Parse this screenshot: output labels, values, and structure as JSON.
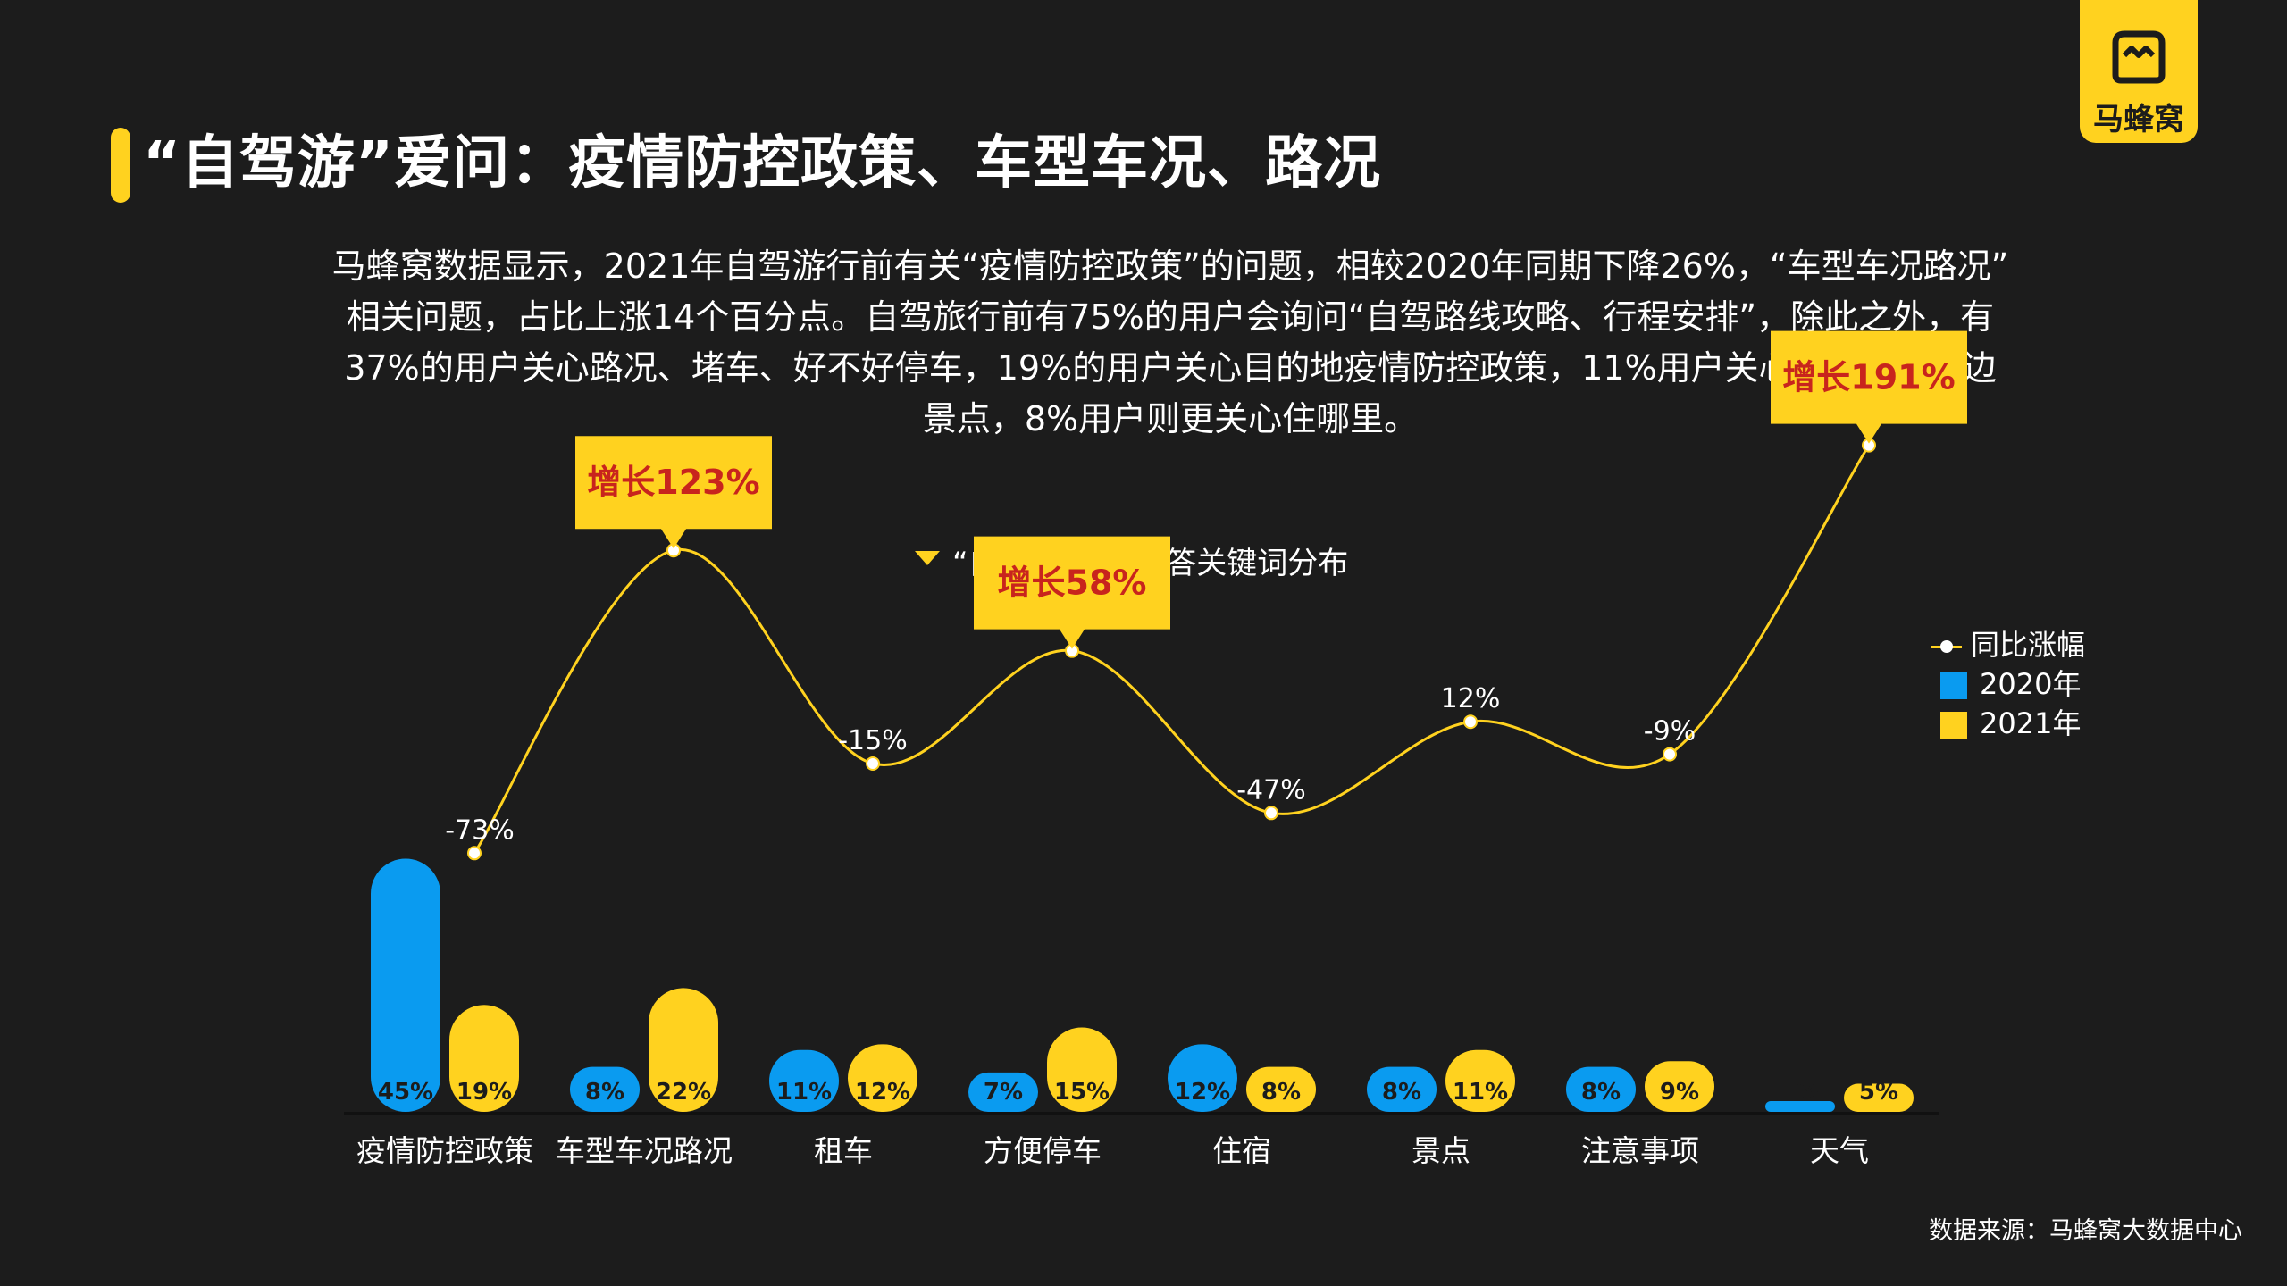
{
  "header": {
    "title": "“自驾游”爱问：疫情防控政策、车型车况、路况",
    "logo_text": "马蜂窝"
  },
  "intro": {
    "lines": [
      "马蜂窝数据显示，2021年自驾游行前有关“疫情防控政策”的问题，相较2020年同期下降26%，“车型车况路况”",
      "相关问题，占比上涨14个百分点。自驾旅行前有75%的用户会询问“自驾路线攻略、行程安排”，除此之外，有",
      "37%的用户关心路况、堵车、好不好停车，19%的用户关心目的地疫情防控政策，11%用户关心自驾路线周边",
      "景点，8%用户则更关心住哪里。"
    ]
  },
  "colors": {
    "background": "#1c1c1c",
    "series_2020": "#0a9bf0",
    "series_2021": "#ffd21f",
    "callout_text": "#c8241d",
    "text": "#ffffff"
  },
  "chart_data": {
    "type": "bar",
    "title": "“自驾游”热门问答关键词分布",
    "categories": [
      "疫情防控政策",
      "车型车况路况",
      "租车",
      "方便停车",
      "住宿",
      "景点",
      "注意事项",
      "天气"
    ],
    "series": [
      {
        "name": "2020年",
        "type": "bar",
        "values": [
          45,
          8,
          11,
          7,
          12,
          8,
          8,
          1
        ],
        "labels": [
          "45%",
          "8%",
          "11%",
          "7%",
          "12%",
          "8%",
          "8%",
          "1%"
        ]
      },
      {
        "name": "2021年",
        "type": "bar",
        "values": [
          19,
          22,
          12,
          15,
          8,
          11,
          9,
          5
        ],
        "labels": [
          "19%",
          "22%",
          "12%",
          "15%",
          "8%",
          "11%",
          "9%",
          "5%"
        ]
      },
      {
        "name": "同比涨幅",
        "type": "line",
        "values": [
          -73,
          123,
          -15,
          58,
          -47,
          12,
          -9,
          191
        ],
        "labels": [
          "-73%",
          "",
          "-15%",
          "",
          "-47%",
          "12%",
          "-9%",
          ""
        ]
      }
    ],
    "callouts": [
      {
        "index": 1,
        "text": "增长123%"
      },
      {
        "index": 3,
        "text": "增长58%"
      },
      {
        "index": 7,
        "text": "增长191%"
      }
    ],
    "bar_unit": "%",
    "legend": {
      "position": "right",
      "items": [
        "同比涨幅",
        "2020年",
        "2021年"
      ]
    },
    "grid": false
  },
  "footer": {
    "source": "数据来源：马蜂窝大数据中心"
  }
}
